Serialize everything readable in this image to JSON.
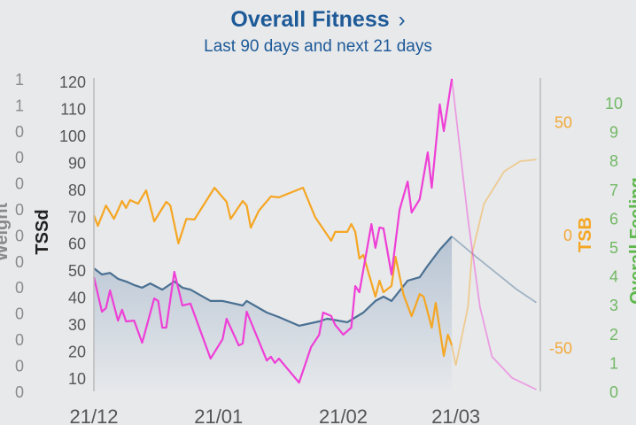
{
  "header": {
    "title": "Overall Fitness",
    "chevron": "›",
    "subtitle": "Last 90 days and next 21 days"
  },
  "chart_data": {
    "type": "line",
    "x_ticks": [
      "21/12",
      "21/01",
      "21/02",
      "21/03"
    ],
    "axes": {
      "weight": {
        "label": "Weight",
        "ticks": [
          "1",
          "1",
          "0",
          "0",
          "0",
          "0",
          "0",
          "0",
          "0",
          "0",
          "0",
          "0",
          "0"
        ],
        "color": "#8a8a8a"
      },
      "tssd": {
        "label": "TSSd",
        "ticks": [
          120,
          110,
          100,
          90,
          80,
          70,
          60,
          50,
          40,
          30,
          20,
          10
        ],
        "ylim": [
          5,
          120
        ],
        "color": "#222222"
      },
      "tsb": {
        "label": "TSB",
        "ticks": [
          50,
          0,
          -50
        ],
        "ylim": [
          -69,
          67
        ],
        "color": "#f5a623"
      },
      "feeling": {
        "label": "Overall Feeling",
        "ticks": [
          10,
          9,
          8,
          7,
          6,
          5,
          4,
          3,
          2,
          1,
          0
        ],
        "ylim": [
          0,
          10
        ],
        "color": "#5cb84a"
      }
    },
    "grid": false,
    "series": [
      {
        "axis": "tssd",
        "color": "#4a7092",
        "fill": true,
        "points": [
          [
            "21/12",
            50.7
          ],
          [
            "23/12",
            48.4
          ],
          [
            "25/12",
            49
          ],
          [
            "27/12",
            46.8
          ],
          [
            "29/12",
            45.8
          ],
          [
            "31/12",
            44.5
          ],
          [
            "02/01",
            43.5
          ],
          [
            "04/01",
            45.1
          ],
          [
            "07/01",
            42.8
          ],
          [
            "10/01",
            45.8
          ],
          [
            "12/01",
            43.5
          ],
          [
            "14/01",
            42.8
          ],
          [
            "19/01",
            38.6
          ],
          [
            "22/01",
            38.6
          ],
          [
            "27/01",
            36.9
          ],
          [
            "28/01",
            38.6
          ],
          [
            "02/02",
            34.3
          ],
          [
            "05/02",
            32.6
          ],
          [
            "10/02",
            29.4
          ],
          [
            "15/02",
            31
          ],
          [
            "17/02",
            32
          ],
          [
            "22/02",
            30.7
          ],
          [
            "26/02",
            34.3
          ],
          [
            "01/03",
            38.6
          ],
          [
            "03/03",
            40.2
          ],
          [
            "05/03",
            38.6
          ],
          [
            "09/03",
            46.1
          ],
          [
            "12/03",
            47.4
          ],
          [
            "14/03",
            51.7
          ],
          [
            "17/03",
            57.6
          ],
          [
            "20/03",
            62.5
          ]
        ],
        "forecast": [
          [
            "20/03",
            62.5
          ],
          [
            "26/03",
            55
          ],
          [
            "31/03",
            49
          ],
          [
            "05/04",
            43
          ],
          [
            "10/04",
            38
          ]
        ]
      },
      {
        "axis": "tssd",
        "color": "#ee3fd6",
        "points": [
          [
            "21/12",
            47.4
          ],
          [
            "23/12",
            34.6
          ],
          [
            "24/12",
            35.9
          ],
          [
            "25/12",
            42.5
          ],
          [
            "27/12",
            31.3
          ],
          [
            "28/12",
            35.3
          ],
          [
            "29/12",
            31
          ],
          [
            "31/12",
            31.3
          ],
          [
            "02/01",
            23.1
          ],
          [
            "05/01",
            39.5
          ],
          [
            "06/01",
            38.6
          ],
          [
            "07/01",
            28.7
          ],
          [
            "08/01",
            28.7
          ],
          [
            "10/01",
            49.4
          ],
          [
            "12/01",
            36.9
          ],
          [
            "14/01",
            37.6
          ],
          [
            "19/01",
            17.2
          ],
          [
            "22/01",
            24.4
          ],
          [
            "23/01",
            32
          ],
          [
            "26/01",
            22.1
          ],
          [
            "27/01",
            22.8
          ],
          [
            "28/01",
            34.6
          ],
          [
            "02/02",
            16.5
          ],
          [
            "03/02",
            17.9
          ],
          [
            "04/02",
            15.6
          ],
          [
            "05/02",
            17.2
          ],
          [
            "10/02",
            8.3
          ],
          [
            "13/02",
            21.5
          ],
          [
            "15/02",
            26
          ],
          [
            "16/02",
            34.3
          ],
          [
            "18/02",
            33
          ],
          [
            "19/02",
            29.7
          ],
          [
            "21/02",
            26.1
          ],
          [
            "23/02",
            28.7
          ],
          [
            "24/02",
            44.1
          ],
          [
            "25/02",
            41.8
          ],
          [
            "28/02",
            67.1
          ],
          [
            "01/03",
            58.3
          ],
          [
            "02/03",
            65.8
          ],
          [
            "03/03",
            65.5
          ],
          [
            "05/03",
            48.4
          ],
          [
            "07/03",
            72.4
          ],
          [
            "09/03",
            82.9
          ],
          [
            "10/03",
            71.4
          ],
          [
            "12/03",
            76.3
          ],
          [
            "14/03",
            93.7
          ],
          [
            "15/03",
            80.6
          ],
          [
            "17/03",
            111.5
          ],
          [
            "18/03",
            101.6
          ],
          [
            "20/03",
            121
          ]
        ],
        "forecast": [
          [
            "20/03",
            121
          ],
          [
            "24/03",
            69
          ],
          [
            "27/03",
            36.3
          ],
          [
            "30/03",
            17.9
          ],
          [
            "04/04",
            10
          ],
          [
            "10/04",
            5.7
          ]
        ]
      },
      {
        "axis": "tsb",
        "color": "#f5a623",
        "points": [
          [
            "21/12",
            8.6
          ],
          [
            "22/12",
            3.9
          ],
          [
            "24/12",
            12.9
          ],
          [
            "26/12",
            7
          ],
          [
            "28/12",
            14.9
          ],
          [
            "29/12",
            11.8
          ],
          [
            "30/12",
            15.3
          ],
          [
            "01/01",
            13.7
          ],
          [
            "03/01",
            19.6
          ],
          [
            "05/01",
            5.9
          ],
          [
            "08/01",
            14.5
          ],
          [
            "09/01",
            12.9
          ],
          [
            "11/01",
            -3.9
          ],
          [
            "13/01",
            7
          ],
          [
            "15/01",
            6.7
          ],
          [
            "20/01",
            20.8
          ],
          [
            "23/01",
            14.5
          ],
          [
            "24/01",
            7
          ],
          [
            "27/01",
            14.9
          ],
          [
            "28/01",
            12.9
          ],
          [
            "29/01",
            3.1
          ],
          [
            "31/01",
            10.6
          ],
          [
            "03/02",
            16.9
          ],
          [
            "05/02",
            16.5
          ],
          [
            "11/02",
            20.8
          ],
          [
            "14/02",
            7.8
          ],
          [
            "18/02",
            -2.7
          ],
          [
            "19/02",
            1.2
          ],
          [
            "22/02",
            1.2
          ],
          [
            "23/02",
            4.7
          ],
          [
            "24/02",
            1.2
          ],
          [
            "25/02",
            -10.6
          ],
          [
            "26/02",
            -9
          ],
          [
            "01/03",
            -27.5
          ],
          [
            "02/03",
            -20.4
          ],
          [
            "03/03",
            -25.5
          ],
          [
            "05/03",
            -22.7
          ],
          [
            "06/03",
            -9.8
          ],
          [
            "08/03",
            -26.7
          ],
          [
            "10/03",
            -36.1
          ],
          [
            "12/03",
            -26.3
          ],
          [
            "13/03",
            -27.5
          ],
          [
            "15/03",
            -41.2
          ],
          [
            "16/03",
            -30.2
          ],
          [
            "18/03",
            -53.7
          ],
          [
            "19/03",
            -44.3
          ],
          [
            "20/03",
            -49
          ]
        ],
        "forecast": [
          [
            "20/03",
            -49
          ],
          [
            "21/03",
            -58
          ],
          [
            "24/03",
            -32
          ],
          [
            "25/03",
            -8.6
          ],
          [
            "28/03",
            13.7
          ],
          [
            "02/04",
            28
          ],
          [
            "06/04",
            32.5
          ],
          [
            "10/04",
            33.3
          ]
        ]
      }
    ]
  }
}
